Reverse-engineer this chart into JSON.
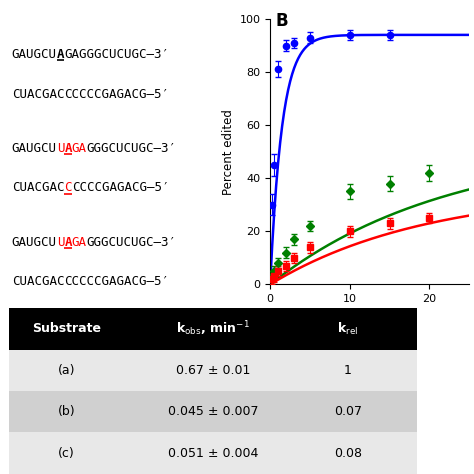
{
  "panel_b_label": "B",
  "seq_fontsize": 9.0,
  "sequences": [
    {
      "top_parts": [
        {
          "text": "GAUGCU",
          "color": "black",
          "bold": false
        },
        {
          "text": "A",
          "color": "black",
          "bold": true,
          "underline": true
        },
        {
          "text": "GAGGGCUCUGC–3′",
          "color": "black",
          "bold": false
        }
      ],
      "bottom_parts": [
        {
          "text": "CUACGAC",
          "color": "black",
          "bold": false
        },
        {
          "text": "CCCCCGAGACG–5′",
          "color": "black",
          "bold": false
        }
      ]
    },
    {
      "top_parts": [
        {
          "text": "GAUGCU",
          "color": "black",
          "bold": false
        },
        {
          "text": "U",
          "color": "red",
          "bold": false
        },
        {
          "text": "A",
          "color": "red",
          "bold": true,
          "underline": true
        },
        {
          "text": "GA",
          "color": "red",
          "bold": false
        },
        {
          "text": "GGGCUCUGC–3′",
          "color": "black",
          "bold": false
        }
      ],
      "bottom_parts": [
        {
          "text": "CUACGAC",
          "color": "black",
          "bold": false
        },
        {
          "text": "C",
          "color": "red",
          "bold": false,
          "underline": true
        },
        {
          "text": "CCCCGAGACG–5′",
          "color": "black",
          "bold": false
        }
      ]
    },
    {
      "top_parts": [
        {
          "text": "GAUGCU",
          "color": "black",
          "bold": false
        },
        {
          "text": "U",
          "color": "red",
          "bold": false
        },
        {
          "text": "A",
          "color": "red",
          "bold": true,
          "underline": true
        },
        {
          "text": "GA",
          "color": "red",
          "bold": false
        },
        {
          "text": "GGGCUCUGC–3′",
          "color": "black",
          "bold": false
        }
      ],
      "bottom_parts": [
        {
          "text": "CUACGAC",
          "color": "black",
          "bold": false
        },
        {
          "text": "CCCCCGAGACG–5′",
          "color": "black",
          "bold": false
        }
      ]
    }
  ],
  "table_rows": [
    [
      "(a)",
      "0.67 ± 0.01",
      "1"
    ],
    [
      "(b)",
      "0.045 ± 0.007",
      "0.07"
    ],
    [
      "(c)",
      "0.051 ± 0.004",
      "0.08"
    ]
  ],
  "header_bg": "#000000",
  "header_fg": "#ffffff",
  "row_bg_light": "#e8e8e8",
  "row_bg_dark": "#d0d0d0",
  "blue_data_x": [
    0.25,
    0.5,
    1,
    2,
    3,
    5,
    10,
    15
  ],
  "blue_data_y": [
    30,
    45,
    81,
    90,
    91,
    93,
    94,
    94
  ],
  "blue_yerr": [
    4,
    4,
    3,
    2,
    2,
    2,
    2,
    2
  ],
  "green_data_x": [
    0.25,
    0.5,
    1,
    2,
    3,
    5,
    10,
    15,
    20
  ],
  "green_data_y": [
    3,
    5,
    8,
    12,
    17,
    22,
    35,
    38,
    42
  ],
  "green_yerr": [
    2,
    2,
    2,
    2,
    2,
    2,
    3,
    3,
    3
  ],
  "red_data_x": [
    0.25,
    0.5,
    1,
    2,
    3,
    5,
    10,
    15,
    20
  ],
  "red_data_y": [
    2,
    3,
    5,
    7,
    10,
    14,
    20,
    23,
    25
  ],
  "red_yerr": [
    2,
    2,
    2,
    2,
    2,
    2,
    2,
    2,
    2
  ],
  "blue_k": 0.67,
  "blue_A": 94,
  "green_k": 0.045,
  "green_A": 53,
  "red_k": 0.051,
  "red_A": 36,
  "xlim": [
    0,
    25
  ],
  "ylim": [
    0,
    100
  ],
  "ylabel": "Percent edited",
  "xticks": [
    0,
    10,
    20
  ],
  "yticks": [
    0,
    20,
    40,
    60,
    80,
    100
  ]
}
